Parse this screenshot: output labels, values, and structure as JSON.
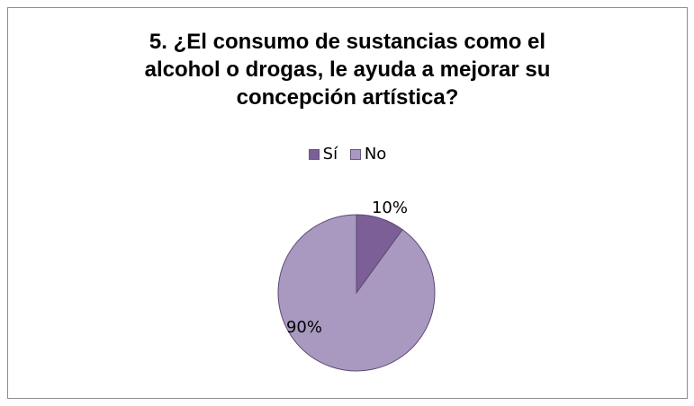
{
  "chart_data": {
    "type": "pie",
    "title": "5. ¿El consumo de sustancias como el\nalcohol o drogas, le ayuda a mejorar su\nconcepción artística?",
    "legend_position": "top",
    "categories": [
      "Sí",
      "No"
    ],
    "values": [
      10,
      90
    ],
    "data_labels": [
      "10%",
      "90%"
    ],
    "colors": [
      "#7b5f96",
      "#a999c0"
    ]
  }
}
